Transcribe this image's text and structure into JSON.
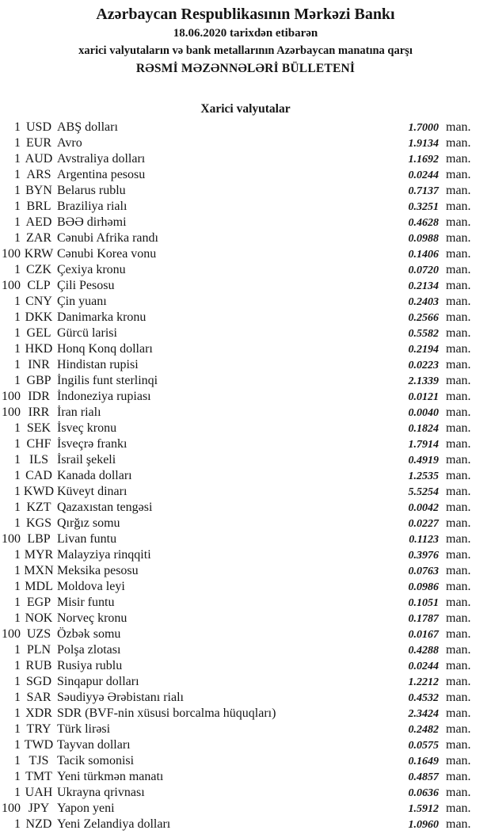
{
  "colors": {
    "background": "#ffffff",
    "text": "#151515"
  },
  "header": {
    "bank_name": "Azərbaycan Respublikasının Mərkəzi Bankı",
    "date_line": "18.06.2020 tarixdən etibarən",
    "subtitle": "xarici valyutaların və bank metallarının Azərbaycan manatına qarşı",
    "bulletin_title": "RƏSMİ MƏZƏNNƏLƏRİ BÜLLETENİ"
  },
  "section": {
    "title": "Xarici valyutalar"
  },
  "table": {
    "rows": [
      {
        "qty": "1",
        "code": "USD",
        "name": "ABŞ dolları",
        "rate": "1.7000",
        "unit": "man."
      },
      {
        "qty": "1",
        "code": "EUR",
        "name": "Avro",
        "rate": "1.9134",
        "unit": "man."
      },
      {
        "qty": "1",
        "code": "AUD",
        "name": "Avstraliya dolları",
        "rate": "1.1692",
        "unit": "man."
      },
      {
        "qty": "1",
        "code": "ARS",
        "name": "Argentina pesosu",
        "rate": "0.0244",
        "unit": "man."
      },
      {
        "qty": "1",
        "code": "BYN",
        "name": "Belarus rublu",
        "rate": "0.7137",
        "unit": "man."
      },
      {
        "qty": "1",
        "code": "BRL",
        "name": "Braziliya rialı",
        "rate": "0.3251",
        "unit": "man."
      },
      {
        "qty": "1",
        "code": "AED",
        "name": "BƏƏ dirhəmi",
        "rate": "0.4628",
        "unit": "man."
      },
      {
        "qty": "1",
        "code": "ZAR",
        "name": "Cənubi Afrika randı",
        "rate": "0.0988",
        "unit": "man."
      },
      {
        "qty": "100",
        "code": "KRW",
        "name": "Cənubi Korea vonu",
        "rate": "0.1406",
        "unit": "man."
      },
      {
        "qty": "1",
        "code": "CZK",
        "name": "Çexiya kronu",
        "rate": "0.0720",
        "unit": "man."
      },
      {
        "qty": "100",
        "code": "CLP",
        "name": "Çili Pesosu",
        "rate": "0.2134",
        "unit": "man."
      },
      {
        "qty": "1",
        "code": "CNY",
        "name": "Çin yuanı",
        "rate": "0.2403",
        "unit": "man."
      },
      {
        "qty": "1",
        "code": "DKK",
        "name": "Danimarka kronu",
        "rate": "0.2566",
        "unit": "man."
      },
      {
        "qty": "1",
        "code": "GEL",
        "name": "Gürcü larisi",
        "rate": "0.5582",
        "unit": "man."
      },
      {
        "qty": "1",
        "code": "HKD",
        "name": "Honq Konq dolları",
        "rate": "0.2194",
        "unit": "man."
      },
      {
        "qty": "1",
        "code": "INR",
        "name": "Hindistan rupisi",
        "rate": "0.0223",
        "unit": "man."
      },
      {
        "qty": "1",
        "code": "GBP",
        "name": "İngilis funt sterlinqi",
        "rate": "2.1339",
        "unit": "man."
      },
      {
        "qty": "100",
        "code": "IDR",
        "name": "İndoneziya rupiası",
        "rate": "0.0121",
        "unit": "man."
      },
      {
        "qty": "100",
        "code": "IRR",
        "name": "İran rialı",
        "rate": "0.0040",
        "unit": "man."
      },
      {
        "qty": "1",
        "code": "SEK",
        "name": "İsveç kronu",
        "rate": "0.1824",
        "unit": "man."
      },
      {
        "qty": "1",
        "code": "CHF",
        "name": "İsveçrə frankı",
        "rate": "1.7914",
        "unit": "man."
      },
      {
        "qty": "1",
        "code": "ILS",
        "name": "İsrail şekeli",
        "rate": "0.4919",
        "unit": "man."
      },
      {
        "qty": "1",
        "code": "CAD",
        "name": "Kanada dolları",
        "rate": "1.2535",
        "unit": "man."
      },
      {
        "qty": "1",
        "code": "KWD",
        "name": "Küveyt dinarı",
        "rate": "5.5254",
        "unit": "man."
      },
      {
        "qty": "1",
        "code": "KZT",
        "name": "Qazaxıstan tengəsi",
        "rate": "0.0042",
        "unit": "man."
      },
      {
        "qty": "1",
        "code": "KGS",
        "name": "Qırğız somu",
        "rate": "0.0227",
        "unit": "man."
      },
      {
        "qty": "100",
        "code": "LBP",
        "name": "Livan funtu",
        "rate": "0.1123",
        "unit": "man."
      },
      {
        "qty": "1",
        "code": "MYR",
        "name": "Malayziya rinqqiti",
        "rate": "0.3976",
        "unit": "man."
      },
      {
        "qty": "1",
        "code": "MXN",
        "name": "Meksika pesosu",
        "rate": "0.0763",
        "unit": "man."
      },
      {
        "qty": "1",
        "code": "MDL",
        "name": "Moldova leyi",
        "rate": "0.0986",
        "unit": "man."
      },
      {
        "qty": "1",
        "code": "EGP",
        "name": "Misir funtu",
        "rate": "0.1051",
        "unit": "man."
      },
      {
        "qty": "1",
        "code": "NOK",
        "name": "Norveç kronu",
        "rate": "0.1787",
        "unit": "man."
      },
      {
        "qty": "100",
        "code": "UZS",
        "name": "Özbək somu",
        "rate": "0.0167",
        "unit": "man."
      },
      {
        "qty": "1",
        "code": "PLN",
        "name": "Polşa zlotası",
        "rate": "0.4288",
        "unit": "man."
      },
      {
        "qty": "1",
        "code": "RUB",
        "name": "Rusiya rublu",
        "rate": "0.0244",
        "unit": "man."
      },
      {
        "qty": "1",
        "code": "SGD",
        "name": "Sinqapur dolları",
        "rate": "1.2212",
        "unit": "man."
      },
      {
        "qty": "1",
        "code": "SAR",
        "name": "Səudiyyə Ərəbistanı rialı",
        "rate": "0.4532",
        "unit": "man."
      },
      {
        "qty": "1",
        "code": "XDR",
        "name": "SDR (BVF-nin xüsusi borcalma hüquqları)",
        "rate": "2.3424",
        "unit": "man."
      },
      {
        "qty": "1",
        "code": "TRY",
        "name": "Türk lirəsi",
        "rate": "0.2482",
        "unit": "man."
      },
      {
        "qty": "1",
        "code": "TWD",
        "name": "Tayvan dolları",
        "rate": "0.0575",
        "unit": "man."
      },
      {
        "qty": "1",
        "code": "TJS",
        "name": "Tacik somonisi",
        "rate": "0.1649",
        "unit": "man."
      },
      {
        "qty": "1",
        "code": "TMT",
        "name": "Yeni türkmən manatı",
        "rate": "0.4857",
        "unit": "man."
      },
      {
        "qty": "1",
        "code": "UAH",
        "name": "Ukrayna qrivnası",
        "rate": "0.0636",
        "unit": "man."
      },
      {
        "qty": "100",
        "code": "JPY",
        "name": "Yapon yeni",
        "rate": "1.5912",
        "unit": "man."
      },
      {
        "qty": "1",
        "code": "NZD",
        "name": "Yeni Zelandiya dolları",
        "rate": "1.0960",
        "unit": "man."
      }
    ]
  }
}
